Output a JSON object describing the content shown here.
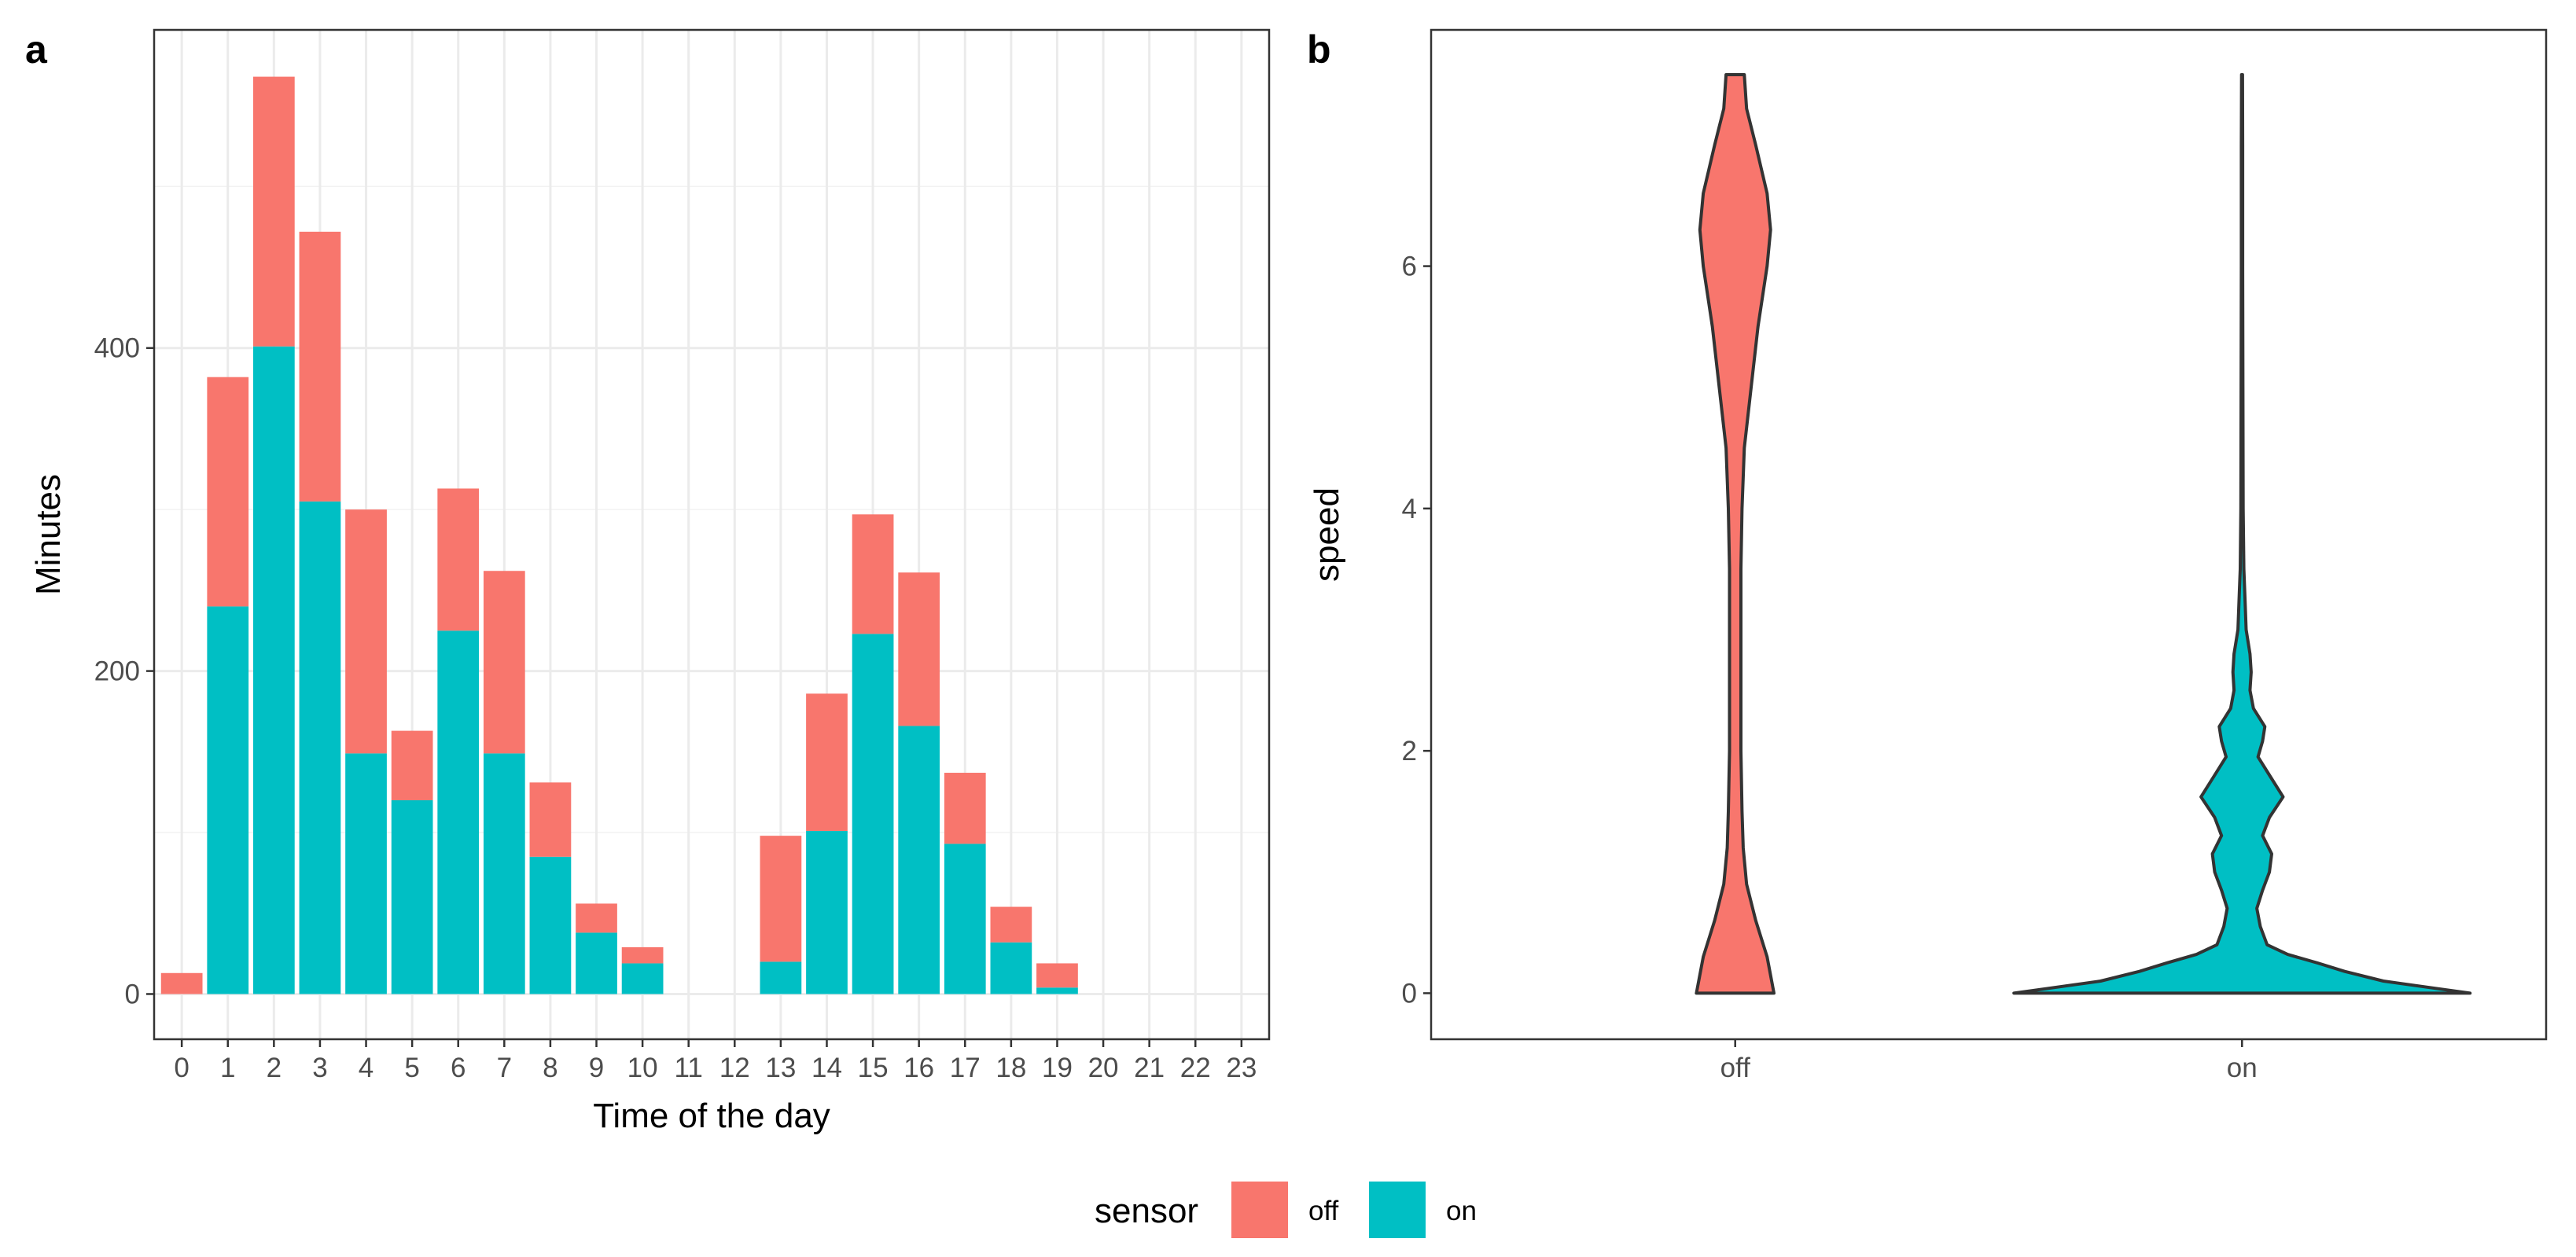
{
  "colors": {
    "off": "#F8766D",
    "on": "#00BFC4"
  },
  "legend": {
    "title": "sensor",
    "items": [
      {
        "label": "off",
        "color": "#F8766D"
      },
      {
        "label": "on",
        "color": "#00BFC4"
      }
    ]
  },
  "chart_data": [
    {
      "panel": "a",
      "type": "bar",
      "stacked": true,
      "xlabel": "Time of the day",
      "ylabel": "Minutes",
      "categories": [
        "0",
        "1",
        "2",
        "3",
        "4",
        "5",
        "6",
        "7",
        "8",
        "9",
        "10",
        "11",
        "12",
        "13",
        "14",
        "15",
        "16",
        "17",
        "18",
        "19",
        "20",
        "21",
        "22",
        "23"
      ],
      "series": [
        {
          "name": "on",
          "values": [
            0,
            240,
            401,
            305,
            149,
            120,
            225,
            149,
            85,
            38,
            19,
            0,
            0,
            20,
            101,
            223,
            166,
            93,
            32,
            4,
            0,
            0,
            0,
            0
          ]
        },
        {
          "name": "off",
          "values": [
            13,
            142,
            167,
            167,
            151,
            43,
            88,
            113,
            46,
            18,
            10,
            0,
            0,
            78,
            85,
            74,
            95,
            44,
            22,
            15,
            0,
            0,
            0,
            0
          ]
        }
      ],
      "yticks": [
        0,
        200,
        400
      ],
      "ylim": [
        -28,
        597
      ],
      "grid": true,
      "legend_position": "bottom"
    },
    {
      "panel": "b",
      "type": "violin",
      "xlabel": "",
      "ylabel": "speed",
      "categories": [
        "off",
        "on"
      ],
      "yticks": [
        0,
        2,
        4,
        6
      ],
      "ylim": [
        -0.38,
        7.95
      ],
      "grid": false,
      "violins": [
        {
          "name": "off",
          "ymin": 0,
          "ymax": 7.58,
          "profile": [
            [
              0,
              0.17
            ],
            [
              0.3,
              0.14
            ],
            [
              0.6,
              0.09
            ],
            [
              0.9,
              0.05
            ],
            [
              1.2,
              0.035
            ],
            [
              1.5,
              0.03
            ],
            [
              2,
              0.025
            ],
            [
              2.5,
              0.025
            ],
            [
              3,
              0.025
            ],
            [
              3.5,
              0.025
            ],
            [
              4,
              0.03
            ],
            [
              4.5,
              0.04
            ],
            [
              5,
              0.07
            ],
            [
              5.5,
              0.1
            ],
            [
              6,
              0.14
            ],
            [
              6.3,
              0.155
            ],
            [
              6.6,
              0.14
            ],
            [
              7,
              0.09
            ],
            [
              7.3,
              0.05
            ],
            [
              7.58,
              0.04
            ]
          ]
        },
        {
          "name": "on",
          "ymin": 0,
          "ymax": 7.58,
          "profile": [
            [
              0,
              1.0
            ],
            [
              0.04,
              0.85
            ],
            [
              0.1,
              0.62
            ],
            [
              0.18,
              0.45
            ],
            [
              0.25,
              0.33
            ],
            [
              0.32,
              0.2
            ],
            [
              0.4,
              0.11
            ],
            [
              0.55,
              0.08
            ],
            [
              0.7,
              0.065
            ],
            [
              0.85,
              0.09
            ],
            [
              1.0,
              0.12
            ],
            [
              1.15,
              0.13
            ],
            [
              1.3,
              0.09
            ],
            [
              1.45,
              0.12
            ],
            [
              1.62,
              0.18
            ],
            [
              1.8,
              0.12
            ],
            [
              1.95,
              0.07
            ],
            [
              2.08,
              0.09
            ],
            [
              2.2,
              0.1
            ],
            [
              2.35,
              0.05
            ],
            [
              2.5,
              0.035
            ],
            [
              2.65,
              0.04
            ],
            [
              2.8,
              0.035
            ],
            [
              3.0,
              0.018
            ],
            [
              3.3,
              0.012
            ],
            [
              3.5,
              0.008
            ],
            [
              4,
              0.005
            ],
            [
              5,
              0.004
            ],
            [
              6,
              0.003
            ],
            [
              7,
              0.003
            ],
            [
              7.58,
              0.002
            ]
          ]
        }
      ]
    }
  ]
}
